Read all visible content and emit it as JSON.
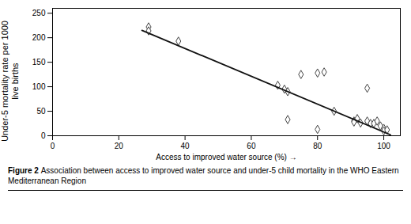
{
  "chart_data": {
    "type": "scatter",
    "xlabel": "Access to improved water source (%)",
    "ylabel": "Under-5 mortality rate per 1000\nlive births",
    "caption_label": "Figure 2 ",
    "caption": "Association between access to improved water source and under-5 child mortality in the WHO Eastern Mediterranean Region",
    "series": [
      {
        "type": "scatter",
        "marker": "diamond",
        "color": "#444444",
        "x": [
          29,
          29,
          38,
          68,
          70,
          71,
          71,
          75,
          80,
          80,
          82,
          85,
          91,
          91,
          92,
          93,
          95,
          95,
          96,
          97,
          98,
          99,
          100,
          100,
          101
        ],
        "values": [
          222,
          214,
          193,
          103,
          95,
          90,
          33,
          125,
          128,
          13,
          130,
          50,
          30,
          28,
          35,
          26,
          97,
          30,
          25,
          25,
          30,
          20,
          15,
          10,
          12
        ]
      },
      {
        "type": "line",
        "color": "#111111",
        "x": [
          27,
          102
        ],
        "values": [
          215,
          2
        ]
      }
    ],
    "xlim": [
      0,
      105
    ],
    "ylim": [
      0,
      260
    ],
    "xticks": [
      0,
      20,
      40,
      60,
      80,
      100
    ],
    "yticks": [
      0,
      50,
      100,
      150,
      200,
      250
    ],
    "grid": false
  }
}
